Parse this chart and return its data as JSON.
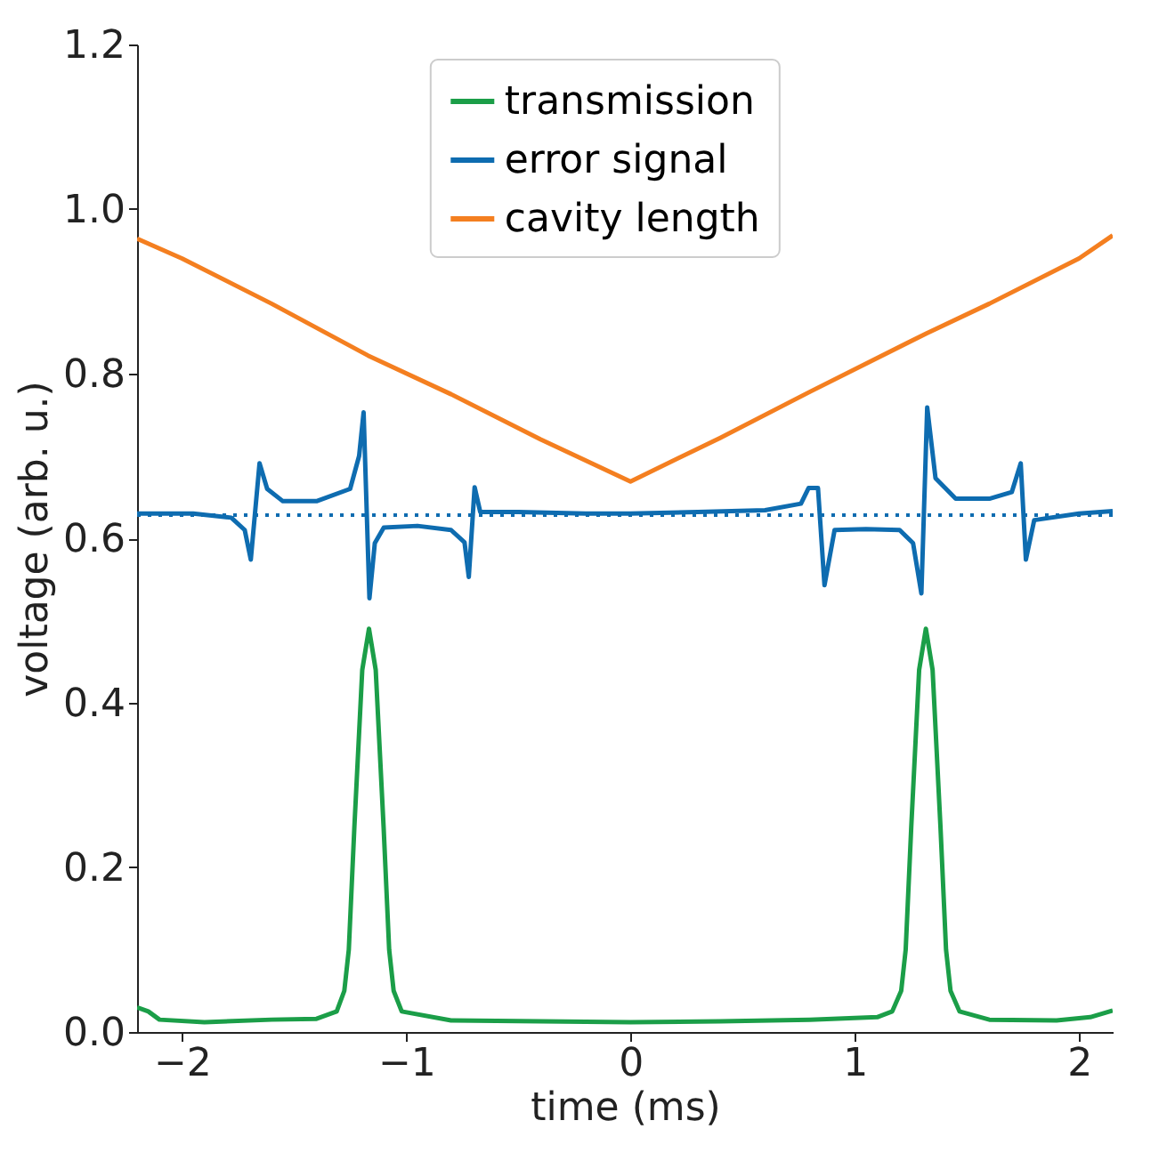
{
  "chart_data": {
    "type": "line",
    "xlabel": "time (ms)",
    "ylabel": "voltage (arb. u.)",
    "xlim": [
      -2.2,
      2.15
    ],
    "ylim": [
      0,
      1.2
    ],
    "xticks": [
      {
        "value": -2,
        "label": "−2"
      },
      {
        "value": -1,
        "label": "−1"
      },
      0,
      1,
      2
    ],
    "yticks": [
      {
        "value": 0,
        "label": "0.0"
      },
      {
        "value": 0.2,
        "label": "0.2"
      },
      {
        "value": 0.4,
        "label": "0.4"
      },
      {
        "value": 0.6,
        "label": "0.6"
      },
      {
        "value": 0.8,
        "label": "0.8"
      },
      {
        "value": 1.0,
        "label": "1.0"
      },
      {
        "value": 1.2,
        "label": "1.2"
      }
    ],
    "grid": false,
    "legend": "top",
    "line_style": "solid",
    "marker": "none",
    "series": [
      {
        "name": "transmission",
        "color": "#1b9e48",
        "x": [
          -2.2,
          -2.15,
          -2.1,
          -1.9,
          -1.6,
          -1.4,
          -1.31,
          -1.276,
          -1.256,
          -1.231,
          -1.196,
          -1.166,
          -1.136,
          -1.101,
          -1.076,
          -1.056,
          -1.02,
          -0.8,
          -0.4,
          0,
          0.4,
          0.8,
          1.1,
          1.167,
          1.207,
          1.227,
          1.252,
          1.287,
          1.317,
          1.347,
          1.382,
          1.407,
          1.427,
          1.467,
          1.6,
          1.9,
          2.05,
          2.15
        ],
        "values": [
          0.03,
          0.025,
          0.015,
          0.012,
          0.015,
          0.016,
          0.025,
          0.05,
          0.1,
          0.25,
          0.44,
          0.49,
          0.44,
          0.25,
          0.1,
          0.05,
          0.025,
          0.014,
          0.013,
          0.012,
          0.013,
          0.015,
          0.018,
          0.025,
          0.05,
          0.1,
          0.25,
          0.44,
          0.49,
          0.44,
          0.25,
          0.1,
          0.05,
          0.025,
          0.015,
          0.014,
          0.018,
          0.026
        ]
      },
      {
        "name": "error signal",
        "color": "#0e6cb0",
        "x": [
          -2.2,
          -1.95,
          -1.78,
          -1.72,
          -1.693,
          -1.654,
          -1.62,
          -1.55,
          -1.4,
          -1.25,
          -1.21,
          -1.19,
          -1.164,
          -1.14,
          -1.1,
          -0.95,
          -0.8,
          -0.74,
          -0.721,
          -0.695,
          -0.67,
          -0.5,
          -0.2,
          0,
          0.3,
          0.6,
          0.76,
          0.794,
          0.836,
          0.865,
          0.91,
          1.05,
          1.2,
          1.26,
          1.297,
          1.323,
          1.36,
          1.45,
          1.6,
          1.7,
          1.74,
          1.763,
          1.8,
          2.0,
          2.15
        ],
        "values": [
          0.63,
          0.63,
          0.625,
          0.61,
          0.574,
          0.691,
          0.66,
          0.645,
          0.645,
          0.66,
          0.7,
          0.753,
          0.527,
          0.594,
          0.613,
          0.615,
          0.61,
          0.595,
          0.553,
          0.662,
          0.632,
          0.632,
          0.63,
          0.63,
          0.632,
          0.634,
          0.642,
          0.661,
          0.661,
          0.543,
          0.61,
          0.611,
          0.61,
          0.594,
          0.533,
          0.759,
          0.673,
          0.648,
          0.648,
          0.656,
          0.691,
          0.574,
          0.622,
          0.63,
          0.633
        ]
      },
      {
        "name": "cavity length",
        "color": "#f47f20",
        "x": [
          -2.2,
          -2.0,
          -1.6,
          -1.17,
          -0.8,
          -0.4,
          0,
          0.4,
          0.8,
          1.32,
          1.6,
          2.0,
          2.15
        ],
        "values": [
          0.964,
          0.94,
          0.885,
          0.822,
          0.775,
          0.72,
          0.669,
          0.722,
          0.778,
          0.849,
          0.885,
          0.94,
          0.968
        ]
      }
    ],
    "ref_lines": [
      {
        "axis": "y",
        "value": 0.628,
        "color": "#0e6cb0",
        "line_style": "dotted"
      }
    ]
  }
}
